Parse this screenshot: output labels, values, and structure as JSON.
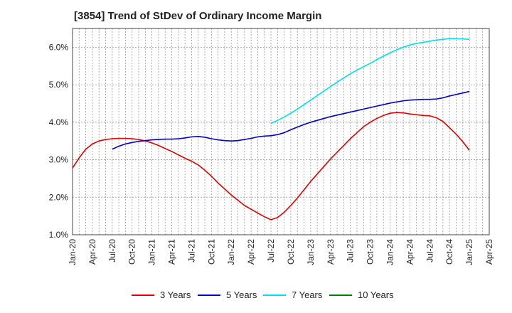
{
  "chart_data": {
    "type": "line",
    "title": "[3854]  Trend of StDev of Ordinary Income Margin",
    "xlabel": "",
    "ylabel": "",
    "ylim": [
      1.0,
      6.5
    ],
    "yticks": [
      1.0,
      2.0,
      3.0,
      4.0,
      5.0,
      6.0
    ],
    "ytick_labels": [
      "1.0%",
      "2.0%",
      "3.0%",
      "4.0%",
      "5.0%",
      "6.0%"
    ],
    "xticks": [
      "Jan-20",
      "Apr-20",
      "Jul-20",
      "Oct-20",
      "Jan-21",
      "Apr-21",
      "Jul-21",
      "Oct-21",
      "Jan-22",
      "Apr-22",
      "Jul-22",
      "Oct-22",
      "Jan-23",
      "Apr-23",
      "Jul-23",
      "Oct-23",
      "Jan-24",
      "Apr-24",
      "Jul-24",
      "Oct-24",
      "Jan-25",
      "Apr-25"
    ],
    "grid": true,
    "legend_position": "bottom",
    "series": [
      {
        "name": "3 Years",
        "color": "#e00000",
        "points": [
          [
            "Jan-20",
            2.78
          ],
          [
            "Feb-20",
            3.05
          ],
          [
            "Mar-20",
            3.28
          ],
          [
            "Apr-20",
            3.42
          ],
          [
            "May-20",
            3.5
          ],
          [
            "Jun-20",
            3.54
          ],
          [
            "Jul-20",
            3.56
          ],
          [
            "Aug-20",
            3.57
          ],
          [
            "Sep-20",
            3.57
          ],
          [
            "Oct-20",
            3.56
          ],
          [
            "Nov-20",
            3.54
          ],
          [
            "Dec-20",
            3.5
          ],
          [
            "Jan-21",
            3.45
          ],
          [
            "Feb-21",
            3.38
          ],
          [
            "Mar-21",
            3.3
          ],
          [
            "Apr-21",
            3.22
          ],
          [
            "May-21",
            3.13
          ],
          [
            "Jun-21",
            3.04
          ],
          [
            "Jul-21",
            2.96
          ],
          [
            "Aug-21",
            2.86
          ],
          [
            "Sep-21",
            2.72
          ],
          [
            "Oct-21",
            2.56
          ],
          [
            "Nov-21",
            2.38
          ],
          [
            "Dec-21",
            2.22
          ],
          [
            "Jan-22",
            2.06
          ],
          [
            "Feb-22",
            1.92
          ],
          [
            "Mar-22",
            1.78
          ],
          [
            "Apr-22",
            1.68
          ],
          [
            "May-22",
            1.58
          ],
          [
            "Jun-22",
            1.48
          ],
          [
            "Jul-22",
            1.4
          ],
          [
            "Aug-22",
            1.46
          ],
          [
            "Sep-22",
            1.6
          ],
          [
            "Oct-22",
            1.78
          ],
          [
            "Nov-22",
            1.98
          ],
          [
            "Dec-22",
            2.2
          ],
          [
            "Jan-23",
            2.42
          ],
          [
            "Feb-23",
            2.62
          ],
          [
            "Mar-23",
            2.82
          ],
          [
            "Apr-23",
            3.02
          ],
          [
            "May-23",
            3.2
          ],
          [
            "Jun-23",
            3.38
          ],
          [
            "Jul-23",
            3.56
          ],
          [
            "Aug-23",
            3.72
          ],
          [
            "Sep-23",
            3.88
          ],
          [
            "Oct-23",
            4.0
          ],
          [
            "Nov-23",
            4.1
          ],
          [
            "Dec-23",
            4.18
          ],
          [
            "Jan-24",
            4.24
          ],
          [
            "Feb-24",
            4.26
          ],
          [
            "Mar-24",
            4.25
          ],
          [
            "Apr-24",
            4.22
          ],
          [
            "May-24",
            4.2
          ],
          [
            "Jun-24",
            4.18
          ],
          [
            "Jul-24",
            4.17
          ],
          [
            "Aug-24",
            4.12
          ],
          [
            "Sep-24",
            4.02
          ],
          [
            "Oct-24",
            3.85
          ],
          [
            "Nov-24",
            3.68
          ],
          [
            "Dec-24",
            3.48
          ],
          [
            "Jan-25",
            3.25
          ]
        ]
      },
      {
        "name": "5 Years",
        "color": "#0000c8",
        "points": [
          [
            "Jul-20",
            3.28
          ],
          [
            "Aug-20",
            3.36
          ],
          [
            "Sep-20",
            3.42
          ],
          [
            "Oct-20",
            3.46
          ],
          [
            "Nov-20",
            3.49
          ],
          [
            "Dec-20",
            3.51
          ],
          [
            "Jan-21",
            3.53
          ],
          [
            "Feb-21",
            3.54
          ],
          [
            "Mar-21",
            3.55
          ],
          [
            "Apr-21",
            3.55
          ],
          [
            "May-21",
            3.56
          ],
          [
            "Jun-21",
            3.58
          ],
          [
            "Jul-21",
            3.61
          ],
          [
            "Aug-21",
            3.62
          ],
          [
            "Sep-21",
            3.6
          ],
          [
            "Oct-21",
            3.56
          ],
          [
            "Nov-21",
            3.53
          ],
          [
            "Dec-21",
            3.51
          ],
          [
            "Jan-22",
            3.5
          ],
          [
            "Feb-22",
            3.51
          ],
          [
            "Mar-22",
            3.54
          ],
          [
            "Apr-22",
            3.57
          ],
          [
            "May-22",
            3.61
          ],
          [
            "Jun-22",
            3.63
          ],
          [
            "Jul-22",
            3.64
          ],
          [
            "Aug-22",
            3.67
          ],
          [
            "Sep-22",
            3.72
          ],
          [
            "Oct-22",
            3.8
          ],
          [
            "Nov-22",
            3.87
          ],
          [
            "Dec-22",
            3.94
          ],
          [
            "Jan-23",
            4.0
          ],
          [
            "Feb-23",
            4.05
          ],
          [
            "Mar-23",
            4.1
          ],
          [
            "Apr-23",
            4.15
          ],
          [
            "May-23",
            4.19
          ],
          [
            "Jun-23",
            4.23
          ],
          [
            "Jul-23",
            4.27
          ],
          [
            "Aug-23",
            4.31
          ],
          [
            "Sep-23",
            4.35
          ],
          [
            "Oct-23",
            4.39
          ],
          [
            "Nov-23",
            4.43
          ],
          [
            "Dec-23",
            4.47
          ],
          [
            "Jan-24",
            4.51
          ],
          [
            "Feb-24",
            4.54
          ],
          [
            "Mar-24",
            4.57
          ],
          [
            "Apr-24",
            4.59
          ],
          [
            "May-24",
            4.6
          ],
          [
            "Jun-24",
            4.61
          ],
          [
            "Jul-24",
            4.61
          ],
          [
            "Aug-24",
            4.62
          ],
          [
            "Sep-24",
            4.65
          ],
          [
            "Oct-24",
            4.7
          ],
          [
            "Nov-24",
            4.74
          ],
          [
            "Dec-24",
            4.78
          ],
          [
            "Jan-25",
            4.82
          ]
        ]
      },
      {
        "name": "7 Years",
        "color": "#00e0e8",
        "points": [
          [
            "Jul-22",
            3.97
          ],
          [
            "Aug-22",
            4.05
          ],
          [
            "Sep-22",
            4.14
          ],
          [
            "Oct-22",
            4.24
          ],
          [
            "Nov-22",
            4.35
          ],
          [
            "Dec-22",
            4.47
          ],
          [
            "Jan-23",
            4.59
          ],
          [
            "Feb-23",
            4.71
          ],
          [
            "Mar-23",
            4.83
          ],
          [
            "Apr-23",
            4.95
          ],
          [
            "May-23",
            5.07
          ],
          [
            "Jun-23",
            5.18
          ],
          [
            "Jul-23",
            5.29
          ],
          [
            "Aug-23",
            5.39
          ],
          [
            "Sep-23",
            5.48
          ],
          [
            "Oct-23",
            5.57
          ],
          [
            "Nov-23",
            5.67
          ],
          [
            "Dec-23",
            5.76
          ],
          [
            "Jan-24",
            5.85
          ],
          [
            "Feb-24",
            5.93
          ],
          [
            "Mar-24",
            6.0
          ],
          [
            "Apr-24",
            6.06
          ],
          [
            "May-24",
            6.1
          ],
          [
            "Jun-24",
            6.13
          ],
          [
            "Jul-24",
            6.16
          ],
          [
            "Aug-24",
            6.19
          ],
          [
            "Sep-24",
            6.21
          ],
          [
            "Oct-24",
            6.23
          ],
          [
            "Nov-24",
            6.23
          ],
          [
            "Dec-24",
            6.22
          ],
          [
            "Jan-25",
            6.21
          ]
        ]
      },
      {
        "name": "10 Years",
        "color": "#008000",
        "points": []
      }
    ]
  }
}
